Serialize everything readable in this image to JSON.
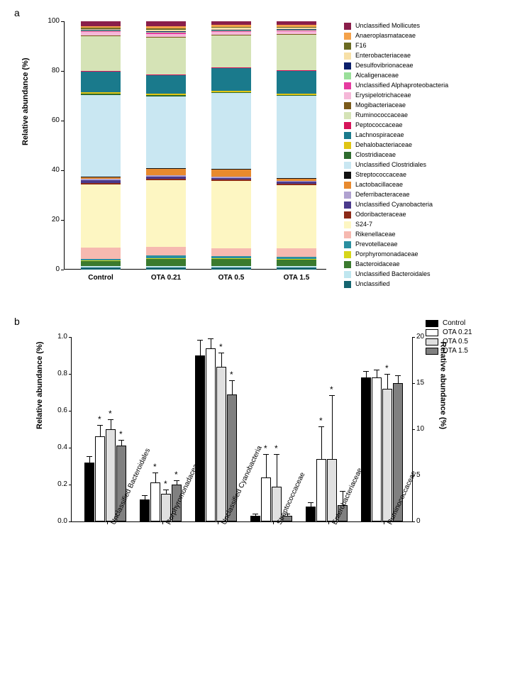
{
  "panelA": {
    "label": "a",
    "y_axis": {
      "label": "Relative abundance (%)",
      "ticks": [
        0,
        20,
        40,
        60,
        80,
        100
      ]
    },
    "categories": [
      "Control",
      "OTA 0.21",
      "OTA 0.5",
      "OTA 1.5"
    ],
    "taxa_order_bottom_to_top": [
      "Unclassified",
      "Unclassified Bacteroidales",
      "Bacteroidaceae",
      "Porphyromonadaceae",
      "Prevotellaceae",
      "Rikenellaceae",
      "S24-7",
      "Odoribacteraceae",
      "Unclassified Cyanobacteria",
      "Deferribacteraceae",
      "Lactobacillaceae",
      "Streptococcaceae",
      "Unclassified Clostridiales",
      "Clostridiaceae",
      "Dehalobacteriaceae",
      "Lachnospiraceae",
      "Peptococcaceae",
      "Ruminococcaceae",
      "Mogibacteriaceae",
      "Erysipelotrichaceae",
      "Unclassified Alphaproteobacteria",
      "Alcaligenaceae",
      "Desulfovibrionaceae",
      "Enterobacteriaceae",
      "F16",
      "Anaeroplasmataceae",
      "Unclassified Mollicutes"
    ],
    "colors": {
      "Unclassified Mollicutes": "#8a1e4a",
      "Anaeroplasmataceae": "#f4a24a",
      "F16": "#6b6b22",
      "Enterobacteriaceae": "#f7e0a8",
      "Desulfovibrionaceae": "#0a1f6b",
      "Alcaligenaceae": "#9adf9a",
      "Unclassified Alphaproteobacteria": "#e63aa0",
      "Erysipelotrichaceae": "#f5b8d8",
      "Mogibacteriaceae": "#7a5a1a",
      "Ruminococcaceae": "#d5e3b6",
      "Peptococcaceae": "#d6145a",
      "Lachnospiraceae": "#1a7a8c",
      "Dehalobacteriaceae": "#e0c514",
      "Clostridiaceae": "#2e6b2e",
      "Unclassified Clostridiales": "#c9e7f2",
      "Streptococcaceae": "#111111",
      "Lactobacillaceae": "#e88a2e",
      "Deferribacteraceae": "#b0a2d0",
      "Unclassified Cyanobacteria": "#4a3a8c",
      "Odoribacteraceae": "#8c2a18",
      "S24-7": "#fdf6c2",
      "Rikenellaceae": "#f6b9b0",
      "Prevotellaceae": "#2a8fa0",
      "Porphyromonadaceae": "#d6d61a",
      "Bacteroidaceae": "#3a7a2e",
      "Unclassified Bacteroidales": "#bfe6ef",
      "Unclassified": "#15646f"
    },
    "values": {
      "Control": {
        "Unclassified": 1.0,
        "Unclassified Bacteroidales": 0.4,
        "Bacteroidaceae": 2.2,
        "Porphyromonadaceae": 0.2,
        "Prevotellaceae": 0.6,
        "Rikenellaceae": 4.5,
        "S24-7": 25.5,
        "Odoribacteraceae": 0.6,
        "Unclassified Cyanobacteria": 0.9,
        "Deferribacteraceae": 0.8,
        "Lactobacillaceae": 0.6,
        "Streptococcaceae": 0.1,
        "Unclassified Clostridiales": 33.0,
        "Clostridiaceae": 0.4,
        "Dehalobacteriaceae": 0.6,
        "Lachnospiraceae": 8.5,
        "Peptococcaceae": 0.2,
        "Ruminococcaceae": 14.0,
        "Mogibacteriaceae": 0.2,
        "Erysipelotrichaceae": 1.5,
        "Unclassified Alphaproteobacteria": 0.3,
        "Alcaligenaceae": 0.3,
        "Desulfovibrionaceae": 0.3,
        "Enterobacteriaceae": 0.2,
        "F16": 0.4,
        "Anaeroplasmataceae": 0.8,
        "Unclassified Mollicutes": 1.9
      },
      "OTA 0.21": {
        "Unclassified": 1.0,
        "Unclassified Bacteroidales": 0.5,
        "Bacteroidaceae": 2.8,
        "Porphyromonadaceae": 0.3,
        "Prevotellaceae": 1.0,
        "Rikenellaceae": 3.5,
        "S24-7": 27.0,
        "Odoribacteraceae": 0.5,
        "Unclassified Cyanobacteria": 0.9,
        "Deferribacteraceae": 0.5,
        "Lactobacillaceae": 2.5,
        "Streptococcaceae": 0.3,
        "Unclassified Clostridiales": 29.0,
        "Clostridiaceae": 0.4,
        "Dehalobacteriaceae": 0.6,
        "Lachnospiraceae": 7.5,
        "Peptococcaceae": 0.3,
        "Ruminococcaceae": 15.0,
        "Mogibacteriaceae": 0.2,
        "Erysipelotrichaceae": 1.2,
        "Unclassified Alphaproteobacteria": 0.3,
        "Alcaligenaceae": 0.3,
        "Desulfovibrionaceae": 0.3,
        "Enterobacteriaceae": 0.8,
        "F16": 0.4,
        "Anaeroplasmataceae": 0.8,
        "Unclassified Mollicutes": 2.1
      },
      "OTA 0.5": {
        "Unclassified": 1.0,
        "Unclassified Bacteroidales": 0.5,
        "Bacteroidaceae": 3.0,
        "Porphyromonadaceae": 0.2,
        "Prevotellaceae": 0.8,
        "Rikenellaceae": 3.2,
        "S24-7": 27.0,
        "Odoribacteraceae": 0.5,
        "Unclassified Cyanobacteria": 0.8,
        "Deferribacteraceae": 0.5,
        "Lactobacillaceae": 2.8,
        "Streptococcaceae": 0.3,
        "Unclassified Clostridiales": 30.5,
        "Clostridiaceae": 0.4,
        "Dehalobacteriaceae": 0.6,
        "Lachnospiraceae": 9.0,
        "Peptococcaceae": 0.3,
        "Ruminococcaceae": 13.0,
        "Mogibacteriaceae": 0.2,
        "Erysipelotrichaceae": 1.0,
        "Unclassified Alphaproteobacteria": 0.3,
        "Alcaligenaceae": 0.3,
        "Desulfovibrionaceae": 0.3,
        "Enterobacteriaceae": 0.8,
        "F16": 0.4,
        "Anaeroplasmataceae": 0.8,
        "Unclassified Mollicutes": 1.5
      },
      "OTA 1.5": {
        "Unclassified": 1.0,
        "Unclassified Bacteroidales": 0.5,
        "Bacteroidaceae": 2.5,
        "Porphyromonadaceae": 0.3,
        "Prevotellaceae": 0.8,
        "Rikenellaceae": 3.5,
        "S24-7": 25.5,
        "Odoribacteraceae": 0.5,
        "Unclassified Cyanobacteria": 0.7,
        "Deferribacteraceae": 0.5,
        "Lactobacillaceae": 1.0,
        "Streptococcaceae": 0.1,
        "Unclassified Clostridiales": 33.0,
        "Clostridiaceae": 0.4,
        "Dehalobacteriaceae": 0.6,
        "Lachnospiraceae": 9.0,
        "Peptococcaceae": 0.3,
        "Ruminococcaceae": 14.5,
        "Mogibacteriaceae": 0.2,
        "Erysipelotrichaceae": 1.2,
        "Unclassified Alphaproteobacteria": 0.3,
        "Alcaligenaceae": 0.3,
        "Desulfovibrionaceae": 0.3,
        "Enterobacteriaceae": 0.3,
        "F16": 0.4,
        "Anaeroplasmataceae": 0.8,
        "Unclassified Mollicutes": 1.5
      }
    },
    "legend_order_top_to_bottom": [
      "Unclassified Mollicutes",
      "Anaeroplasmataceae",
      "F16",
      "Enterobacteriaceae",
      "Desulfovibrionaceae",
      "Alcaligenaceae",
      "Unclassified Alphaproteobacteria",
      "Erysipelotrichaceae",
      "Mogibacteriaceae",
      "Ruminococcaceae",
      "Peptococcaceae",
      "Lachnospiraceae",
      "Dehalobacteriaceae",
      "Clostridiaceae",
      "Unclassified Clostridiales",
      "Streptococcaceae",
      "Lactobacillaceae",
      "Deferribacteraceae",
      "Unclassified Cyanobacteria",
      "Odoribacteraceae",
      "S24-7",
      "Rikenellaceae",
      "Prevotellaceae",
      "Porphyromonadaceae",
      "Bacteroidaceae",
      "Unclassified Bacteroidales",
      "Unclassified"
    ]
  },
  "panelB": {
    "label": "b",
    "y_left": {
      "label": "Relative abundance (%)",
      "min": 0,
      "max": 1.0,
      "ticks": [
        0.0,
        0.2,
        0.4,
        0.6,
        0.8,
        1.0
      ]
    },
    "y_right": {
      "label": "Relative abundance (%)",
      "min": 0,
      "max": 20,
      "ticks": [
        0,
        5,
        10,
        15,
        20
      ]
    },
    "groups": [
      "Control",
      "OTA 0.21",
      "OTA 0.5",
      "OTA 1.5"
    ],
    "group_colors": {
      "Control": "#000000",
      "OTA 0.21": "#ffffff",
      "OTA 0.5": "#e0e0e0",
      "OTA 1.5": "#808080"
    },
    "categories": [
      {
        "name": "Unclassified Bacteroidales",
        "axis": "left",
        "values": {
          "Control": [
            0.32,
            0.03,
            false
          ],
          "OTA 0.21": [
            0.46,
            0.06,
            true
          ],
          "OTA 0.5": [
            0.5,
            0.05,
            true
          ],
          "OTA 1.5": [
            0.41,
            0.03,
            true
          ]
        }
      },
      {
        "name": "Porphyromonadaceae",
        "axis": "left",
        "values": {
          "Control": [
            0.12,
            0.02,
            false
          ],
          "OTA 0.21": [
            0.21,
            0.05,
            true
          ],
          "OTA 0.5": [
            0.15,
            0.02,
            true
          ],
          "OTA 1.5": [
            0.2,
            0.02,
            true
          ]
        }
      },
      {
        "name": "Unclassified Cyanobacteria",
        "axis": "left",
        "values": {
          "Control": [
            0.9,
            0.08,
            false
          ],
          "OTA 0.21": [
            0.94,
            0.05,
            false
          ],
          "OTA 0.5": [
            0.84,
            0.07,
            true
          ],
          "OTA 1.5": [
            0.69,
            0.07,
            true
          ]
        }
      },
      {
        "name": "Streptococcaceae",
        "axis": "left",
        "values": {
          "Control": [
            0.03,
            0.01,
            false
          ],
          "OTA 0.21": [
            0.24,
            0.12,
            true
          ],
          "OTA 0.5": [
            0.19,
            0.17,
            true
          ],
          "OTA 1.5": [
            0.03,
            0.01,
            false
          ]
        }
      },
      {
        "name": "Enterobacteriaceae",
        "axis": "left",
        "values": {
          "Control": [
            0.08,
            0.02,
            false
          ],
          "OTA 0.21": [
            0.34,
            0.17,
            true
          ],
          "OTA 0.5": [
            0.34,
            0.34,
            true
          ],
          "OTA 1.5": [
            0.09,
            0.07,
            false
          ]
        }
      },
      {
        "name": "Ruminococcaceae",
        "axis": "right",
        "values": {
          "Control": [
            15.6,
            0.6,
            false
          ],
          "OTA 0.21": [
            15.6,
            0.8,
            false
          ],
          "OTA 0.5": [
            14.4,
            1.5,
            true
          ],
          "OTA 1.5": [
            15.0,
            0.8,
            false
          ]
        }
      }
    ]
  }
}
